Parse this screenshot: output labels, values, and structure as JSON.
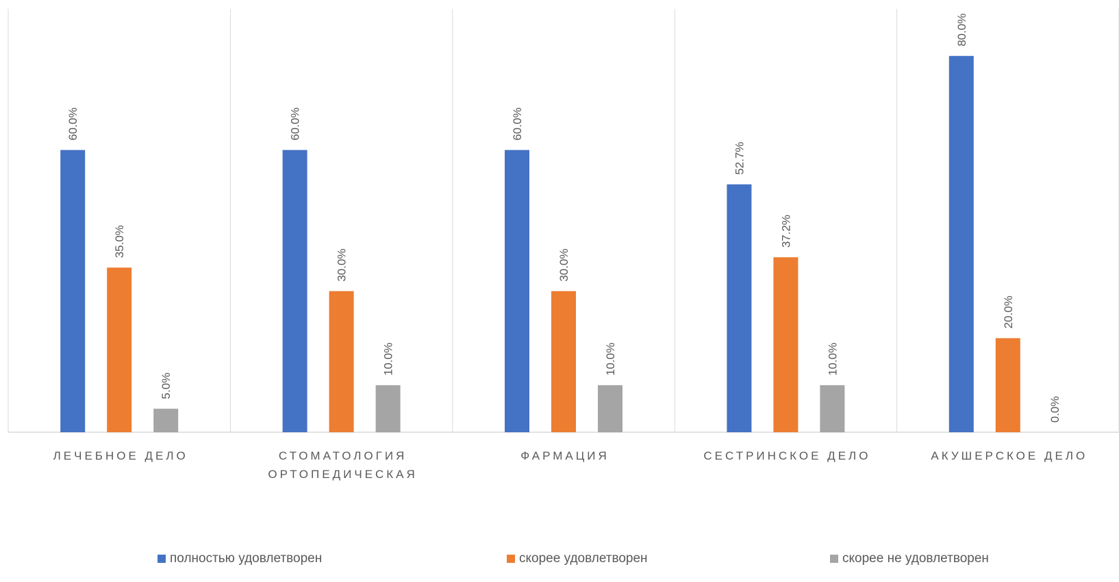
{
  "chart_data": {
    "type": "bar",
    "title": "",
    "xlabel": "",
    "ylabel": "",
    "ylim": [
      0,
      90
    ],
    "grid": "vertical category separators",
    "legend_position": "bottom",
    "categories": [
      [
        "ЛЕЧЕБНОЕ ДЕЛО"
      ],
      [
        "СТОМАТОЛОГИЯ",
        "ОРТОПЕДИЧЕСКАЯ"
      ],
      [
        "ФАРМАЦИЯ"
      ],
      [
        "СЕСТРИНСКОЕ ДЕЛО"
      ],
      [
        "АКУШЕРСКОЕ ДЕЛО"
      ]
    ],
    "series": [
      {
        "name": "полностью удовлетворен",
        "color": "#4472C4",
        "values": [
          60.0,
          60.0,
          60.0,
          52.7,
          80.0
        ],
        "labels": [
          "60.0%",
          "60.0%",
          "60.0%",
          "52.7%",
          "80.0%"
        ]
      },
      {
        "name": "скорее удовлетворен",
        "color": "#ED7D31",
        "values": [
          35.0,
          30.0,
          30.0,
          37.2,
          20.0
        ],
        "labels": [
          "35.0%",
          "30.0%",
          "30.0%",
          "37.2%",
          "20.0%"
        ]
      },
      {
        "name": "скорее не удовлетворен",
        "color": "#A5A5A5",
        "values": [
          5.0,
          10.0,
          10.0,
          10.0,
          0.0
        ],
        "labels": [
          "5.0%",
          "10.0%",
          "10.0%",
          "10.0%",
          "0.0%"
        ]
      }
    ]
  }
}
